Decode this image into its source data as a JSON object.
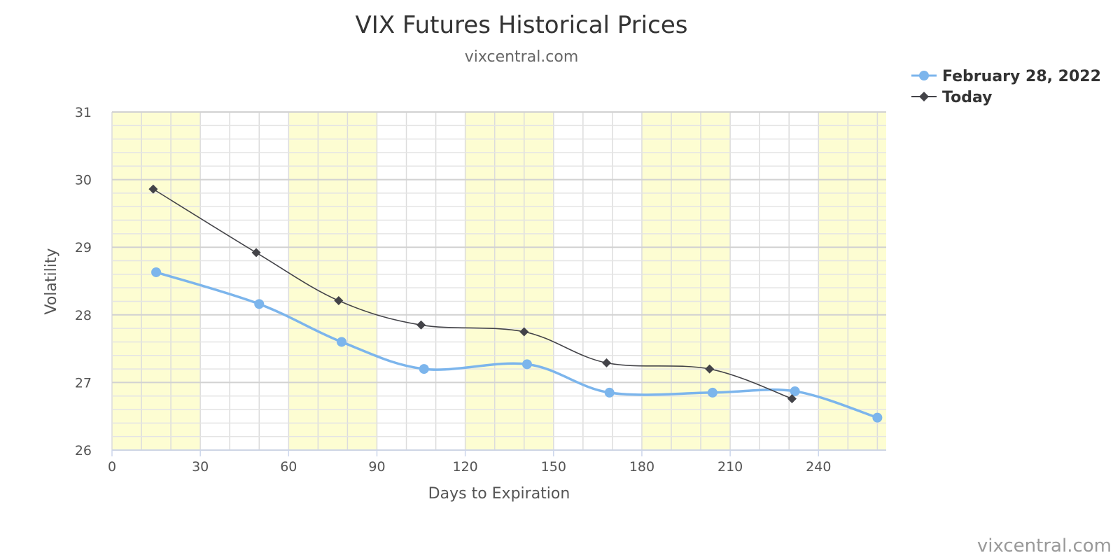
{
  "chart_data": {
    "type": "line",
    "title": "VIX Futures Historical Prices",
    "subtitle": "vixcentral.com",
    "xlabel": "Days to Expiration",
    "ylabel": "Volatility",
    "xlim": [
      0,
      263
    ],
    "ylim": [
      26,
      31
    ],
    "x_ticks": [
      "0",
      "30",
      "60",
      "90",
      "120",
      "150",
      "180",
      "210",
      "240"
    ],
    "y_ticks": [
      "26",
      "27",
      "28",
      "29",
      "30",
      "31"
    ],
    "grid": true,
    "legend_position": "top-right",
    "band_colors": {
      "shaded": "#fdfdd2",
      "plain": "#ffffff"
    },
    "series": [
      {
        "name": "February 28, 2022",
        "color": "#7cb5ec",
        "marker": "circle",
        "x": [
          15,
          50,
          78,
          106,
          141,
          169,
          204,
          232,
          260
        ],
        "y": [
          28.63,
          28.16,
          27.6,
          27.2,
          27.27,
          26.85,
          26.85,
          26.87,
          26.48
        ]
      },
      {
        "name": "Today",
        "color": "#434348",
        "marker": "diamond",
        "x": [
          14,
          49,
          77,
          105,
          140,
          168,
          203,
          231
        ],
        "y": [
          29.86,
          28.92,
          28.21,
          27.85,
          27.75,
          27.29,
          27.2,
          26.76
        ]
      }
    ]
  },
  "credit": "vixcentral.com"
}
